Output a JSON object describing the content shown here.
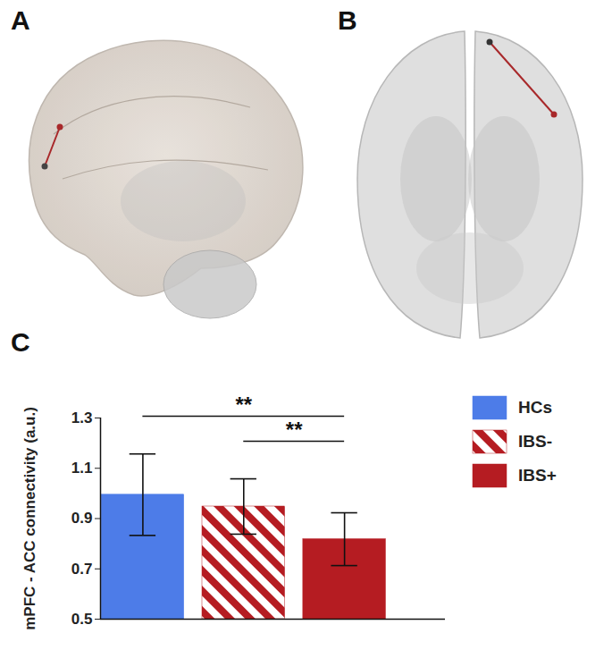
{
  "panel_labels": [
    "A",
    "B",
    "C"
  ],
  "chart_data": {
    "type": "bar",
    "ylabel": "mPFC - ACC connectivity (a.u.)",
    "categories": [
      null,
      null,
      null
    ],
    "series": [
      {
        "name": "HCs",
        "color": "#4d7ce8",
        "values": [
          0.995,
          null,
          null
        ],
        "error": [
          0.162,
          null,
          null
        ]
      },
      {
        "name": "IBS-",
        "color": "#b51c22",
        "marker": "hatch",
        "values": [
          null,
          0.948,
          null
        ],
        "error": [
          null,
          0.11,
          null
        ]
      },
      {
        "name": "IBS+",
        "color": "#b51c22",
        "values": [
          null,
          null,
          0.818
        ],
        "error": [
          null,
          null,
          0.105
        ]
      }
    ],
    "ylim": [
      0.5,
      1.3
    ],
    "yticks": [
      0.5,
      0.7,
      0.9,
      1.1,
      1.3
    ],
    "grid": false,
    "legend": "right",
    "tick_labels": "y",
    "annotations": [
      {
        "text": "**",
        "from": "HCs",
        "to": "IBS+"
      },
      {
        "text": "**",
        "from": "IBS-",
        "to": "IBS+"
      }
    ]
  }
}
